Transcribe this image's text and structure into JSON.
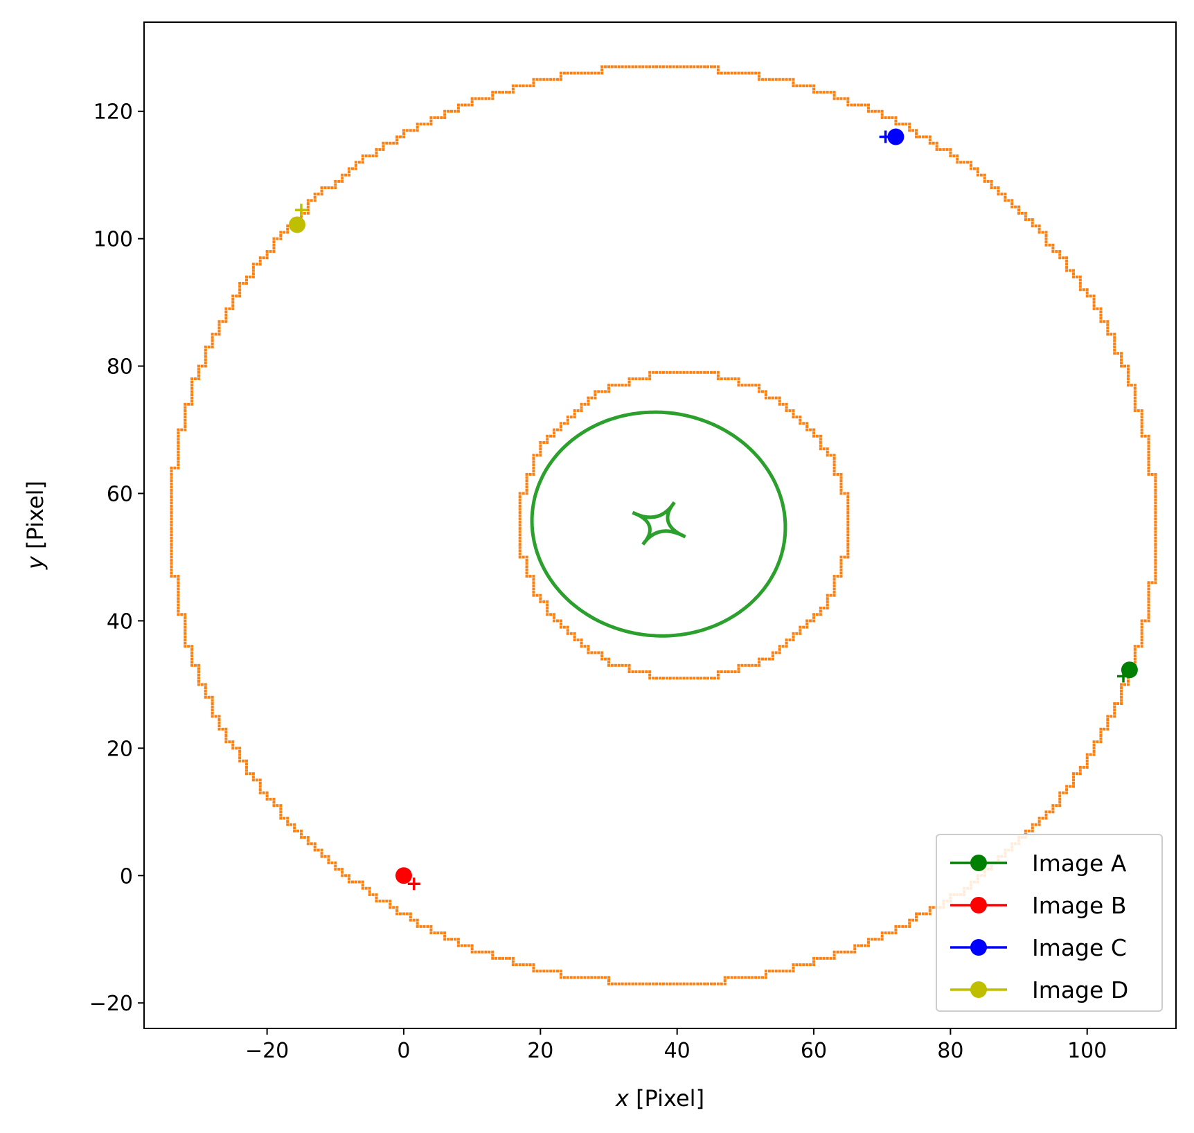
{
  "chart_data": {
    "type": "scatter",
    "title": "",
    "xlabel": {
      "italic": "x",
      "rest": " [Pixel]"
    },
    "ylabel": {
      "italic": "y",
      "rest": " [Pixel]"
    },
    "xlim": [
      -38,
      113
    ],
    "ylim": [
      -24,
      134
    ],
    "xticks": [
      -20,
      0,
      20,
      40,
      60,
      80,
      100
    ],
    "yticks": [
      -20,
      0,
      20,
      40,
      60,
      80,
      100,
      120
    ],
    "xtick_labels": [
      "−20",
      "0",
      "20",
      "40",
      "60",
      "80",
      "100"
    ],
    "ytick_labels": [
      "−20",
      "0",
      "20",
      "40",
      "60",
      "80",
      "100",
      "120"
    ],
    "grid": false,
    "legend_position": "lower-right",
    "curves": [
      {
        "kind": "outer_ring",
        "style": "pixelated-dots",
        "color": "#ff7f0e",
        "center": [
          38,
          55
        ],
        "radius": 72
      },
      {
        "kind": "inner_ring",
        "style": "pixelated-dots",
        "color": "#ff7f0e",
        "center": [
          41,
          55
        ],
        "radius": 24
      },
      {
        "kind": "critical_curve",
        "style": "line",
        "color": "#2ca02c",
        "center": [
          37.3,
          55.2
        ],
        "semi_axes": [
          18.6,
          17.5
        ],
        "rotation_deg": -14
      },
      {
        "kind": "caustic",
        "style": "line",
        "color": "#2ca02c",
        "cusps": [
          [
            39.6,
            58.6
          ],
          [
            41.2,
            53.2
          ],
          [
            35.0,
            52.0
          ],
          [
            33.5,
            57.0
          ]
        ]
      }
    ],
    "series": [
      {
        "name": "Image A",
        "color": "#008000",
        "observed": [
          106.2,
          32.3
        ],
        "model": [
          105.3,
          31.3
        ]
      },
      {
        "name": "Image B",
        "color": "#ff0000",
        "observed": [
          0.0,
          0.0
        ],
        "model": [
          1.5,
          -1.3
        ]
      },
      {
        "name": "Image C",
        "color": "#0000ff",
        "observed": [
          72.0,
          116.0
        ],
        "model": [
          70.5,
          116.0
        ]
      },
      {
        "name": "Image D",
        "color": "#bfbf00",
        "observed": [
          -15.6,
          102.2
        ],
        "model": [
          -15.0,
          104.5
        ]
      }
    ]
  }
}
